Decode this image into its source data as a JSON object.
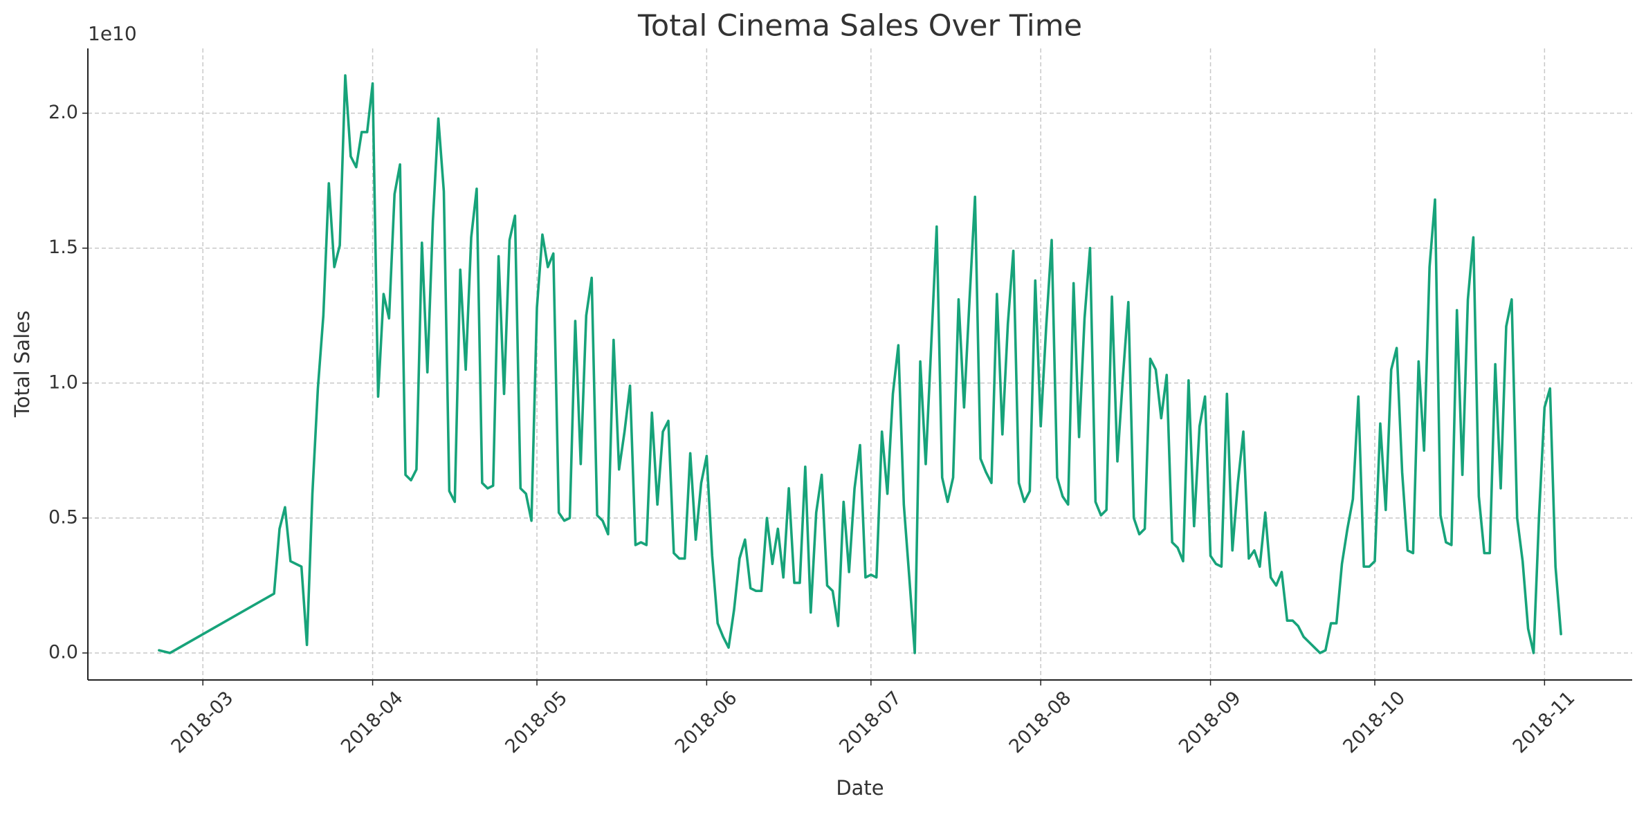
{
  "chart_data": {
    "type": "line",
    "title": "Total Cinema Sales Over Time",
    "xlabel": "Date",
    "ylabel": "Total Sales",
    "y_offset_label": "1e10",
    "x": [
      "2018-02-21",
      "2018-02-23",
      "2018-03-14",
      "2018-03-15",
      "2018-03-16",
      "2018-03-17",
      "2018-03-18",
      "2018-03-19",
      "2018-03-20",
      "2018-03-21",
      "2018-03-22",
      "2018-03-23",
      "2018-03-24",
      "2018-03-25",
      "2018-03-26",
      "2018-03-27",
      "2018-03-28",
      "2018-03-29",
      "2018-03-30",
      "2018-03-31",
      "2018-04-01",
      "2018-04-02",
      "2018-04-03",
      "2018-04-04",
      "2018-04-05",
      "2018-04-06",
      "2018-04-07",
      "2018-04-08",
      "2018-04-09",
      "2018-04-10",
      "2018-04-11",
      "2018-04-12",
      "2018-04-13",
      "2018-04-14",
      "2018-04-15",
      "2018-04-16",
      "2018-04-17",
      "2018-04-18",
      "2018-04-19",
      "2018-04-20",
      "2018-04-21",
      "2018-04-22",
      "2018-04-23",
      "2018-04-24",
      "2018-04-25",
      "2018-04-26",
      "2018-04-27",
      "2018-04-28",
      "2018-04-29",
      "2018-04-30",
      "2018-05-01",
      "2018-05-02",
      "2018-05-03",
      "2018-05-04",
      "2018-05-05",
      "2018-05-06",
      "2018-05-07",
      "2018-05-08",
      "2018-05-09",
      "2018-05-10",
      "2018-05-11",
      "2018-05-12",
      "2018-05-13",
      "2018-05-14",
      "2018-05-15",
      "2018-05-16",
      "2018-05-17",
      "2018-05-18",
      "2018-05-19",
      "2018-05-20",
      "2018-05-21",
      "2018-05-22",
      "2018-05-23",
      "2018-05-24",
      "2018-05-25",
      "2018-05-26",
      "2018-05-27",
      "2018-05-28",
      "2018-05-29",
      "2018-05-30",
      "2018-05-31",
      "2018-06-01",
      "2018-06-02",
      "2018-06-03",
      "2018-06-04",
      "2018-06-05",
      "2018-06-06",
      "2018-06-07",
      "2018-06-08",
      "2018-06-09",
      "2018-06-10",
      "2018-06-11",
      "2018-06-12",
      "2018-06-13",
      "2018-06-14",
      "2018-06-15",
      "2018-06-16",
      "2018-06-17",
      "2018-06-18",
      "2018-06-19",
      "2018-06-20",
      "2018-06-21",
      "2018-06-22",
      "2018-06-23",
      "2018-06-24",
      "2018-06-25",
      "2018-06-26",
      "2018-06-27",
      "2018-06-28",
      "2018-06-29",
      "2018-06-30",
      "2018-07-01",
      "2018-07-02",
      "2018-07-03",
      "2018-07-04",
      "2018-07-05",
      "2018-07-06",
      "2018-07-07",
      "2018-07-08",
      "2018-07-09",
      "2018-07-10",
      "2018-07-11",
      "2018-07-12",
      "2018-07-13",
      "2018-07-14",
      "2018-07-15",
      "2018-07-16",
      "2018-07-17",
      "2018-07-18",
      "2018-07-19",
      "2018-07-20",
      "2018-07-21",
      "2018-07-22",
      "2018-07-23",
      "2018-07-24",
      "2018-07-25",
      "2018-07-26",
      "2018-07-27",
      "2018-07-28",
      "2018-07-29",
      "2018-07-30",
      "2018-07-31",
      "2018-08-01",
      "2018-08-02",
      "2018-08-03",
      "2018-08-04",
      "2018-08-05",
      "2018-08-06",
      "2018-08-07",
      "2018-08-08",
      "2018-08-09",
      "2018-08-10",
      "2018-08-11",
      "2018-08-12",
      "2018-08-13",
      "2018-08-14",
      "2018-08-15",
      "2018-08-16",
      "2018-08-17",
      "2018-08-18",
      "2018-08-19",
      "2018-08-20",
      "2018-08-21",
      "2018-08-22",
      "2018-08-23",
      "2018-08-24",
      "2018-08-25",
      "2018-08-26",
      "2018-08-27",
      "2018-08-28",
      "2018-08-29",
      "2018-08-30",
      "2018-08-31",
      "2018-09-01",
      "2018-09-02",
      "2018-09-03",
      "2018-09-04",
      "2018-09-05",
      "2018-09-06",
      "2018-09-07",
      "2018-09-08",
      "2018-09-09",
      "2018-09-10",
      "2018-09-11",
      "2018-09-12",
      "2018-09-13",
      "2018-09-14",
      "2018-09-15",
      "2018-09-16",
      "2018-09-17",
      "2018-09-18",
      "2018-09-19",
      "2018-09-20",
      "2018-09-21",
      "2018-09-22",
      "2018-09-23",
      "2018-09-24",
      "2018-09-25",
      "2018-09-26",
      "2018-09-27",
      "2018-09-28",
      "2018-09-29",
      "2018-09-30",
      "2018-10-01",
      "2018-10-02",
      "2018-10-03",
      "2018-10-04",
      "2018-10-05",
      "2018-10-06",
      "2018-10-07",
      "2018-10-08",
      "2018-10-09",
      "2018-10-10",
      "2018-10-11",
      "2018-10-12",
      "2018-10-13",
      "2018-10-14",
      "2018-10-15",
      "2018-10-16",
      "2018-10-17",
      "2018-10-18",
      "2018-10-19",
      "2018-10-20",
      "2018-10-21",
      "2018-10-22",
      "2018-10-23",
      "2018-10-24",
      "2018-10-25",
      "2018-10-26",
      "2018-10-27",
      "2018-10-28",
      "2018-10-29",
      "2018-10-30",
      "2018-10-31",
      "2018-11-01",
      "2018-11-02",
      "2018-11-03",
      "2018-11-04"
    ],
    "values": [
      0.01,
      0.0,
      0.22,
      0.46,
      0.54,
      0.34,
      0.33,
      0.32,
      0.03,
      0.59,
      0.98,
      1.25,
      1.74,
      1.43,
      1.51,
      2.14,
      1.84,
      1.8,
      1.93,
      1.93,
      2.11,
      0.95,
      1.33,
      1.24,
      1.7,
      1.81,
      0.66,
      0.64,
      0.68,
      1.52,
      1.04,
      1.6,
      1.98,
      1.71,
      0.6,
      0.56,
      1.42,
      1.05,
      1.54,
      1.72,
      0.63,
      0.61,
      0.62,
      1.47,
      0.96,
      1.53,
      1.62,
      0.61,
      0.59,
      0.49,
      1.28,
      1.55,
      1.43,
      1.48,
      0.52,
      0.49,
      0.5,
      1.23,
      0.7,
      1.25,
      1.39,
      0.51,
      0.49,
      0.44,
      1.16,
      0.68,
      0.82,
      0.99,
      0.4,
      0.41,
      0.4,
      0.89,
      0.55,
      0.82,
      0.86,
      0.37,
      0.35,
      0.35,
      0.74,
      0.42,
      0.63,
      0.73,
      0.36,
      0.11,
      0.06,
      0.02,
      0.16,
      0.35,
      0.42,
      0.24,
      0.23,
      0.23,
      0.5,
      0.33,
      0.46,
      0.28,
      0.61,
      0.26,
      0.26,
      0.69,
      0.15,
      0.52,
      0.66,
      0.25,
      0.23,
      0.1,
      0.56,
      0.3,
      0.61,
      0.77,
      0.28,
      0.29,
      0.28,
      0.82,
      0.59,
      0.96,
      1.14,
      0.55,
      0.28,
      0.0,
      1.08,
      0.7,
      1.14,
      1.58,
      0.65,
      0.56,
      0.65,
      1.31,
      0.91,
      1.31,
      1.69,
      0.72,
      0.67,
      0.63,
      1.33,
      0.81,
      1.22,
      1.49,
      0.63,
      0.56,
      0.6,
      1.38,
      0.84,
      1.21,
      1.53,
      0.65,
      0.58,
      0.55,
      1.37,
      0.8,
      1.24,
      1.5,
      0.56,
      0.51,
      0.53,
      1.32,
      0.71,
      1.02,
      1.3,
      0.5,
      0.44,
      0.46,
      1.09,
      1.05,
      0.87,
      1.03,
      0.41,
      0.39,
      0.34,
      1.01,
      0.47,
      0.84,
      0.95,
      0.36,
      0.33,
      0.32,
      0.96,
      0.38,
      0.63,
      0.82,
      0.35,
      0.38,
      0.32,
      0.52,
      0.28,
      0.25,
      0.3,
      0.12,
      0.12,
      0.1,
      0.06,
      0.04,
      0.02,
      0.0,
      0.01,
      0.11,
      0.11,
      0.33,
      0.46,
      0.57,
      0.95,
      0.32,
      0.32,
      0.34,
      0.85,
      0.53,
      1.05,
      1.13,
      0.67,
      0.38,
      0.37,
      1.08,
      0.75,
      1.43,
      1.68,
      0.51,
      0.41,
      0.4,
      1.27,
      0.66,
      1.31,
      1.54,
      0.58,
      0.37,
      0.37,
      1.07,
      0.61,
      1.21,
      1.31,
      0.5,
      0.34,
      0.09,
      0.0,
      0.51,
      0.91,
      0.98,
      0.32,
      0.07
    ],
    "color": "#17a37a",
    "xlim": [
      "2018-02-08",
      "2018-11-17"
    ],
    "xticks": [
      "2018-03",
      "2018-04",
      "2018-05",
      "2018-06",
      "2018-07",
      "2018-08",
      "2018-09",
      "2018-10",
      "2018-11"
    ],
    "ylim": [
      -0.1,
      2.24
    ],
    "yticks": [
      {
        "value": 0,
        "label": "0.0"
      },
      0.5,
      {
        "value": 1,
        "label": "1.0"
      },
      1.5,
      {
        "value": 2,
        "label": "2.0"
      }
    ],
    "grid": true
  }
}
